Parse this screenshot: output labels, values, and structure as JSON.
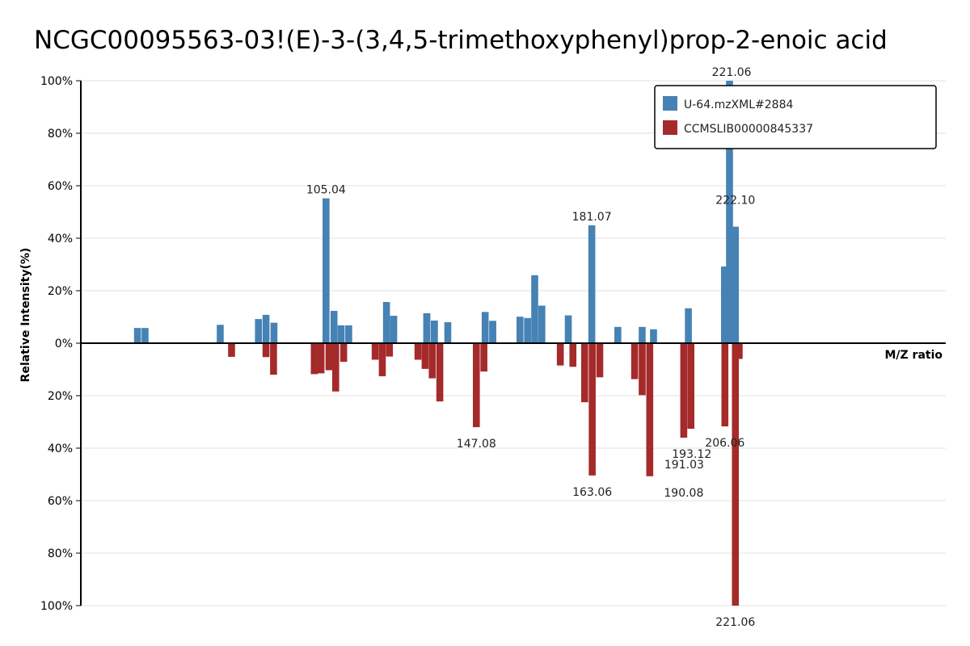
{
  "chart_data": {
    "type": "bar",
    "title": "NCGC00095563-03!(E)-3-(3,4,5-trimethoxyphenyl)prop-2-enoic  acid",
    "xlabel": "M/Z ratio",
    "ylabel": "Relative Intensity(%)",
    "ylim": [
      -100,
      100
    ],
    "y_ticks": [
      "100%",
      "80%",
      "60%",
      "40%",
      "20%",
      "0%",
      "20%",
      "40%",
      "60%",
      "80%",
      "100%"
    ],
    "grid": true,
    "legend_position": "top-right",
    "colors": {
      "top": "#4682B4",
      "bottom": "#A52A2A"
    },
    "series": [
      {
        "name": "U-64.mzXML#2884",
        "direction": "up",
        "x": [
          51.0,
          52.0,
          67.0,
          77.0,
          79.0,
          81.0,
          91.0,
          93.0,
          95.0,
          97.0,
          105.04,
          107.0,
          109.0,
          111.0,
          115.0,
          116.0,
          117.0,
          124.0,
          125.0,
          127.0,
          128.0,
          131.0,
          135.0,
          135.0,
          136.0,
          140.0,
          144.0,
          145.0,
          146.0,
          147.0,
          148.0,
          150.0,
          151.0,
          152.0,
          157.0,
          158.0,
          161.0,
          162.0,
          163.0,
          164.0,
          169.0,
          173.0,
          175.0,
          176.0,
          181.07,
          185.0,
          186.0,
          188.0,
          190.0,
          193.0,
          203.0,
          206.0,
          220.0,
          221.06,
          222.1
        ],
        "values": [
          5.8,
          5.8,
          7.0,
          9.2,
          10.8,
          7.8,
          55.2,
          12.3,
          6.8,
          6.8,
          55.2,
          12.3,
          6.8,
          6.8,
          15.7,
          10.4,
          11.4,
          8.6,
          8.0,
          11.9,
          8.5,
          10.1,
          9.6,
          25.9,
          14.3,
          10.6,
          44.9,
          6.2,
          6.2,
          5.3,
          13.3,
          29.2,
          100.0,
          44.4,
          0,
          0,
          0,
          0,
          0,
          0,
          0,
          0,
          0,
          0,
          44.9,
          0,
          0,
          0,
          0,
          0,
          0,
          0,
          29.2,
          100.0,
          44.4
        ]
      },
      {
        "name": "CCMSLIB00000845337",
        "direction": "down",
        "x": [
          77.0,
          79.0,
          81.0,
          89.0,
          90.0,
          91.0,
          92.0,
          93.0,
          103.0,
          104.0,
          105.0,
          115.0,
          116.0,
          117.0,
          118.0,
          119.0,
          120.0,
          147.08,
          149.0,
          161.0,
          162.0,
          163.06,
          175.0,
          176.0,
          177.0,
          190.08,
          191.03,
          193.12,
          206.06,
          221.06,
          222.0
        ],
        "values": [
          5.2,
          5.3,
          12.0,
          11.8,
          11.5,
          10.3,
          18.4,
          7.1,
          6.3,
          12.6,
          5.1,
          6.3,
          9.8,
          13.4,
          22.2,
          8.6,
          22.2,
          32.0,
          10.8,
          8.5,
          22.5,
          50.4,
          13.0,
          13.7,
          19.8,
          50.7,
          36.0,
          32.6,
          31.7,
          100.0,
          6.0
        ]
      }
    ],
    "peak_labels_top": [
      "221.06",
      "105.04",
      "181.07",
      "222.10"
    ],
    "peak_labels_bottom": [
      "147.08",
      "163.06",
      "193.12",
      "191.03",
      "206.06",
      "190.08",
      "221.06"
    ]
  }
}
